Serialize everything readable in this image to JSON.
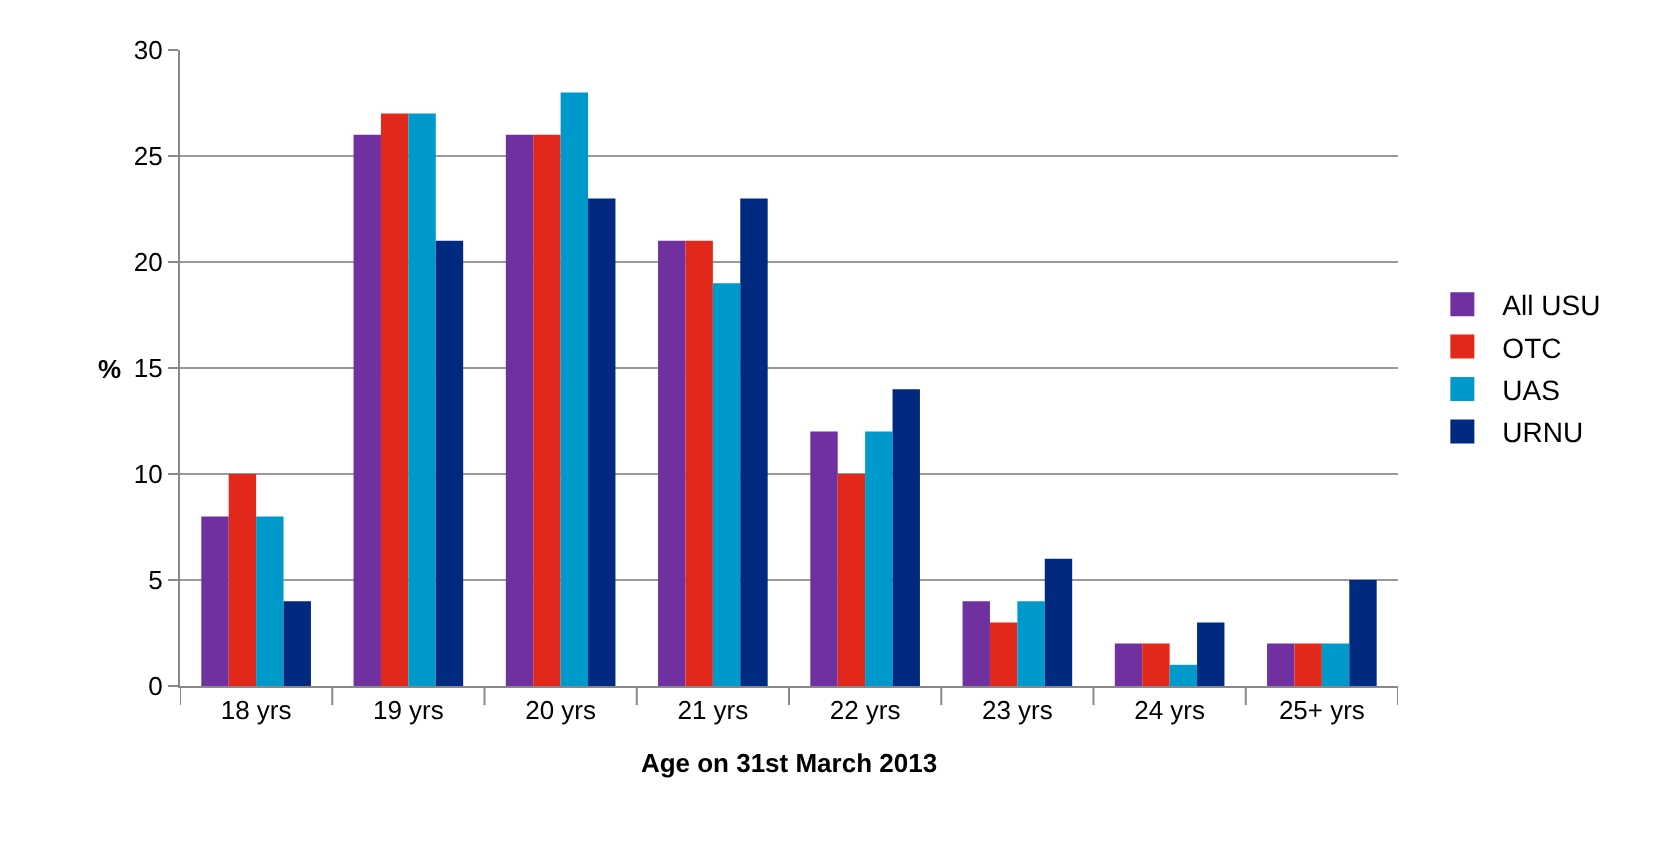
{
  "chart_data": {
    "type": "bar",
    "xlabel": "Age on 31st March 2013",
    "ylabel": "%",
    "categories": [
      "18 yrs",
      "19 yrs",
      "20 yrs",
      "21 yrs",
      "22 yrs",
      "23 yrs",
      "24 yrs",
      "25+ yrs"
    ],
    "series": [
      {
        "name": "All USU",
        "color": "#7030a0",
        "values": [
          8,
          26,
          26,
          21,
          12,
          4,
          2,
          2
        ]
      },
      {
        "name": "OTC",
        "color": "#e2281a",
        "values": [
          10,
          27,
          26,
          21,
          10,
          3,
          2,
          2
        ]
      },
      {
        "name": "UAS",
        "color": "#0099cc",
        "values": [
          8,
          27,
          28,
          19,
          12,
          4,
          1,
          2
        ]
      },
      {
        "name": "URNU",
        "color": "#002a7f",
        "values": [
          4,
          21,
          23,
          23,
          14,
          6,
          3,
          5
        ]
      }
    ],
    "ylim": [
      0,
      30
    ],
    "yticks": [
      0,
      5,
      10,
      15,
      20,
      25,
      30
    ],
    "grid": "y",
    "legend": "right"
  }
}
